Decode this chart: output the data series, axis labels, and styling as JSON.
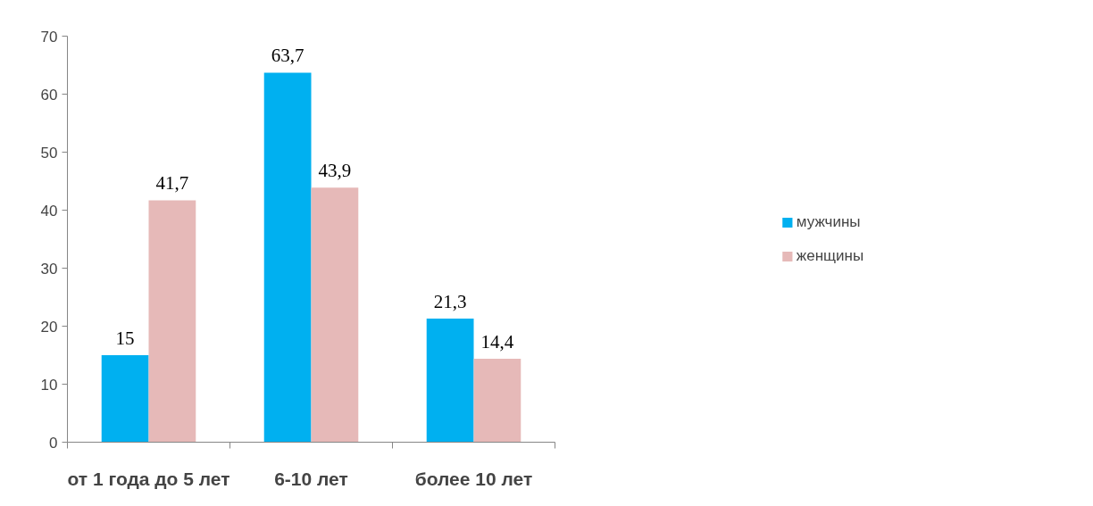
{
  "chart_data": {
    "type": "bar",
    "categories": [
      "от 1 года до 5 лет",
      "6-10 лет",
      "более 10 лет"
    ],
    "series": [
      {
        "name": "мужчины",
        "color": "#00b0f0",
        "values": [
          15,
          63.7,
          21.3
        ],
        "value_labels": [
          "15",
          "63,7",
          "21,3"
        ]
      },
      {
        "name": "женщины",
        "color": "#e6b9b8",
        "values": [
          41.7,
          43.9,
          14.4
        ],
        "value_labels": [
          "41,7",
          "43,9",
          "14,4"
        ]
      }
    ],
    "ylim": [
      0,
      70
    ],
    "yticks": [
      0,
      10,
      20,
      30,
      40,
      50,
      60,
      70
    ],
    "grid": false,
    "legend": "right"
  }
}
